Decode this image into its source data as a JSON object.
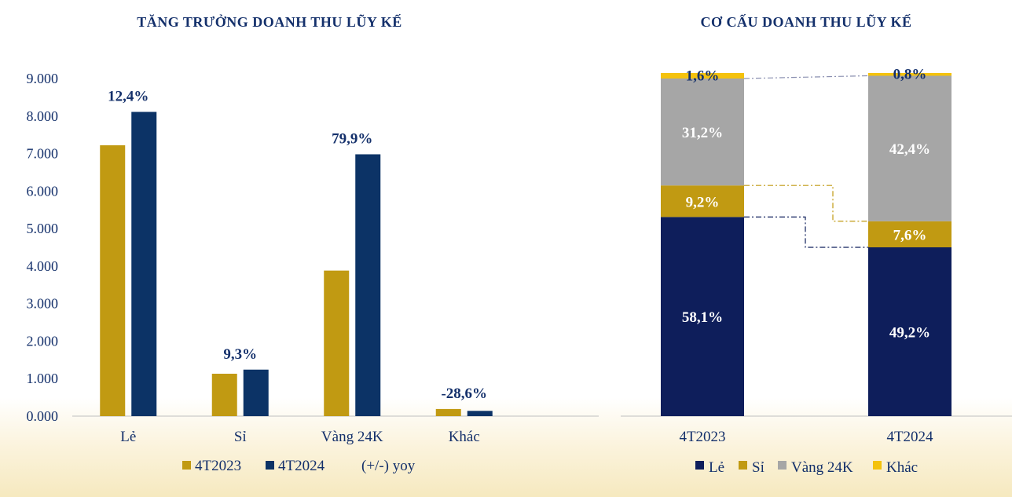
{
  "colors": {
    "gold": "#c19a12",
    "navy": "#0c3366",
    "le": "#0e1e5b",
    "si": "#c19a12",
    "vang": "#a6a6a6",
    "khac": "#f4c20d",
    "text": "#14306b"
  },
  "chart_data": [
    {
      "type": "bar",
      "title": "TĂNG TRƯỞNG DOANH THU LŨY KẾ",
      "categories": [
        "Lẻ",
        "Sỉ",
        "Vàng 24K",
        "Khác"
      ],
      "series": [
        {
          "name": "4T2023",
          "values": [
            7.22,
            1.13,
            3.88,
            0.19
          ]
        },
        {
          "name": "4T2024",
          "values": [
            8.11,
            1.24,
            6.98,
            0.14
          ]
        }
      ],
      "yoy_labels": [
        "12,4%",
        "9,3%",
        "79,9%",
        "-28,6%"
      ],
      "yoy_series_name": "(+/-) yoy",
      "yticks": [
        "0.000",
        "1.000",
        "2.000",
        "3.000",
        "4.000",
        "5.000",
        "6.000",
        "7.000",
        "8.000",
        "9.000"
      ],
      "ylim": [
        0,
        9
      ],
      "legend_position": "bottom",
      "xlabel": "",
      "ylabel": ""
    },
    {
      "type": "bar",
      "stacked": true,
      "title": "CƠ CẤU DOANH THU LŨY KẾ",
      "categories": [
        "4T2023",
        "4T2024"
      ],
      "series": [
        {
          "name": "Lẻ",
          "values": [
            58.1,
            49.2
          ],
          "labels": [
            "58,1%",
            "49,2%"
          ]
        },
        {
          "name": "Sỉ",
          "values": [
            9.2,
            7.6
          ],
          "labels": [
            "9,2%",
            "7,6%"
          ]
        },
        {
          "name": "Vàng 24K",
          "values": [
            31.2,
            42.4
          ],
          "labels": [
            "31,2%",
            "42,4%"
          ]
        },
        {
          "name": "Khác",
          "values": [
            1.6,
            0.8
          ],
          "labels": [
            "1,6%",
            "0,8%"
          ]
        }
      ],
      "ylim": [
        0,
        100
      ],
      "legend_position": "bottom"
    }
  ]
}
